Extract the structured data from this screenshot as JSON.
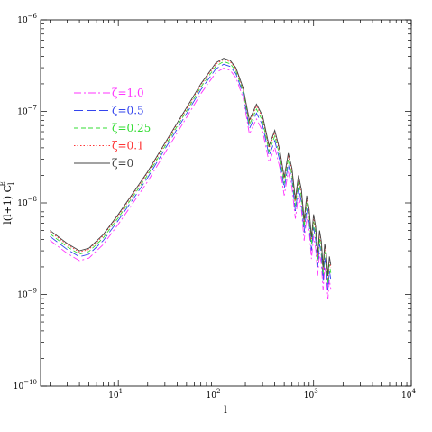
{
  "chart_data": {
    "type": "line",
    "title": "",
    "xlabel": "l",
    "ylabel": "l(l+1) C",
    "ylabel_sub": "l",
    "ylabel_sup": "E",
    "xscale": "log",
    "yscale": "log",
    "xlim": [
      1.6,
      10000
    ],
    "ylim": [
      1e-10,
      1e-06
    ],
    "grid": false,
    "legend_position": "upper-left",
    "x_ticks": [
      {
        "value": 10,
        "base": "10",
        "exp": "1"
      },
      {
        "value": 100,
        "base": "10",
        "exp": "2"
      },
      {
        "value": 1000,
        "base": "10",
        "exp": "3"
      },
      {
        "value": 10000,
        "base": "10",
        "exp": "4"
      }
    ],
    "y_ticks": [
      {
        "value": 1e-10,
        "base": "10",
        "exp": "−10"
      },
      {
        "value": 1e-09,
        "base": "10",
        "exp": "−9"
      },
      {
        "value": 1e-08,
        "base": "10",
        "exp": "−8"
      },
      {
        "value": 1e-07,
        "base": "10",
        "exp": "−7"
      },
      {
        "value": 1e-06,
        "base": "10",
        "exp": "−6"
      }
    ],
    "series": [
      {
        "name": "ζ=1.0",
        "color": "#ff33ff",
        "dash": "8,3,2,3",
        "scale": 0.78,
        "l_max": 1500
      },
      {
        "name": "ζ=0.5",
        "color": "#3344ee",
        "dash": "10,4",
        "scale": 0.86,
        "l_max": 1500
      },
      {
        "name": "ζ=0.25",
        "color": "#33dd33",
        "dash": "5,3",
        "scale": 0.92,
        "l_max": 1500
      },
      {
        "name": "ζ=0.1",
        "color": "#ff3333",
        "dash": "1.5,2",
        "scale": 0.97,
        "l_max": 1500
      },
      {
        "name": "ζ=0",
        "color": "#444444",
        "dash": "",
        "scale": 1.0,
        "l_max": 1500
      }
    ],
    "base_curve": {
      "l": [
        2,
        3,
        4,
        5,
        7,
        10,
        15,
        20,
        30,
        50,
        70,
        100,
        120,
        140,
        160,
        190,
        220,
        260,
        300,
        350,
        400,
        450,
        500,
        550,
        600,
        650,
        700,
        750,
        800,
        850,
        900,
        950,
        1000,
        1050,
        1100,
        1150,
        1200,
        1250,
        1300,
        1350,
        1400,
        1450,
        1500
      ],
      "y": [
        5e-09,
        3.6e-09,
        3e-09,
        3.2e-09,
        4.5e-09,
        7.5e-09,
        1.4e-08,
        2.2e-08,
        4.5e-08,
        1.1e-07,
        2e-07,
        3.4e-07,
        3.8e-07,
        3.6e-07,
        3e-07,
        1.8e-07,
        8e-08,
        1.2e-07,
        9e-08,
        4.2e-08,
        6.2e-08,
        3.8e-08,
        1.9e-08,
        3.5e-08,
        2.4e-08,
        1.1e-08,
        2e-08,
        1.4e-08,
        6.5e-09,
        1.2e-08,
        8.5e-09,
        4.2e-09,
        7.5e-09,
        5.5e-09,
        2.8e-09,
        5e-09,
        3.8e-09,
        2e-09,
        3.6e-09,
        2.8e-09,
        1.6e-09,
        2.6e-09,
        2.1e-09
      ]
    }
  }
}
